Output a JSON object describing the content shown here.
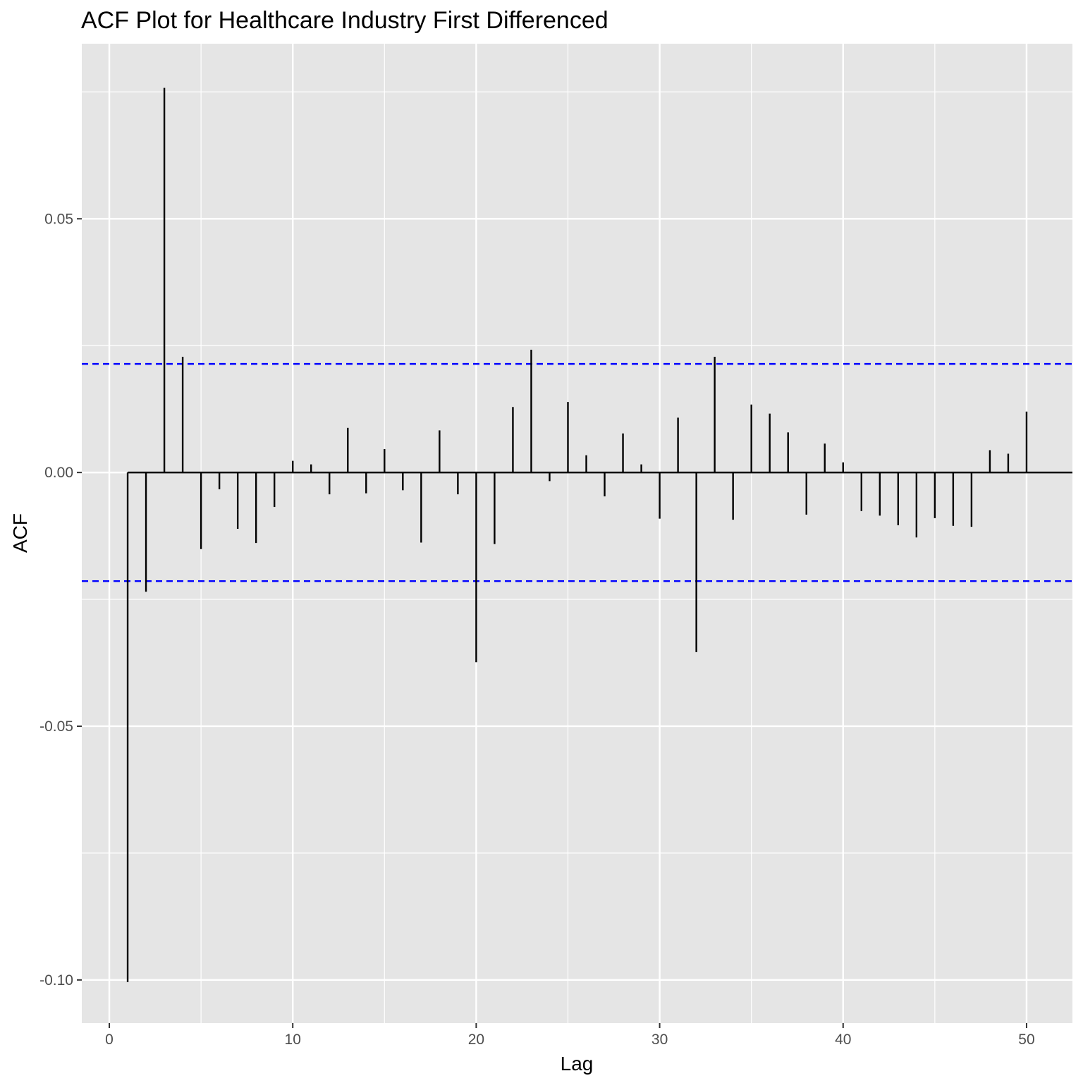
{
  "chart_data": {
    "type": "bar",
    "title": "ACF Plot for Healthcare Industry First Differenced",
    "xlabel": "Lag",
    "ylabel": "ACF",
    "xlim": [
      -1.5,
      52.5
    ],
    "ylim": [
      -0.1085,
      0.0845
    ],
    "x_ticks": [
      0,
      10,
      20,
      30,
      40,
      50
    ],
    "x_tick_labels": [
      "0",
      "10",
      "20",
      "30",
      "40",
      "50"
    ],
    "y_ticks": [
      -0.1,
      -0.05,
      0.0,
      0.05
    ],
    "y_tick_labels": [
      "-0.10",
      "-0.05",
      "0.00",
      "0.05"
    ],
    "grid": true,
    "confidence_band": 0.0214,
    "confidence_color": "#0000ff",
    "background_color": "#e5e5e5",
    "bar_color": "#000000",
    "lags": [
      1,
      2,
      3,
      4,
      5,
      6,
      7,
      8,
      9,
      10,
      11,
      12,
      13,
      14,
      15,
      16,
      17,
      18,
      19,
      20,
      21,
      22,
      23,
      24,
      25,
      26,
      27,
      28,
      29,
      30,
      31,
      32,
      33,
      34,
      35,
      36,
      37,
      38,
      39,
      40,
      41,
      42,
      43,
      44,
      45,
      46,
      47,
      48,
      49,
      50
    ],
    "values": [
      -0.1004,
      -0.0235,
      0.0758,
      0.0228,
      -0.0151,
      -0.0033,
      -0.0111,
      -0.0139,
      -0.0068,
      0.0023,
      0.0016,
      -0.0043,
      0.0088,
      -0.0041,
      0.0046,
      -0.0035,
      -0.0138,
      0.0083,
      -0.0043,
      -0.0374,
      -0.0141,
      0.0129,
      0.0242,
      -0.0017,
      0.0139,
      0.0034,
      -0.0047,
      0.0077,
      0.0016,
      -0.0091,
      0.0108,
      -0.0354,
      0.0228,
      -0.0093,
      0.0134,
      0.0116,
      0.0079,
      -0.0083,
      0.0057,
      0.002,
      -0.0076,
      -0.0085,
      -0.0104,
      -0.0128,
      -0.009,
      -0.0105,
      -0.0107,
      0.0044,
      0.0037,
      0.012
    ]
  }
}
